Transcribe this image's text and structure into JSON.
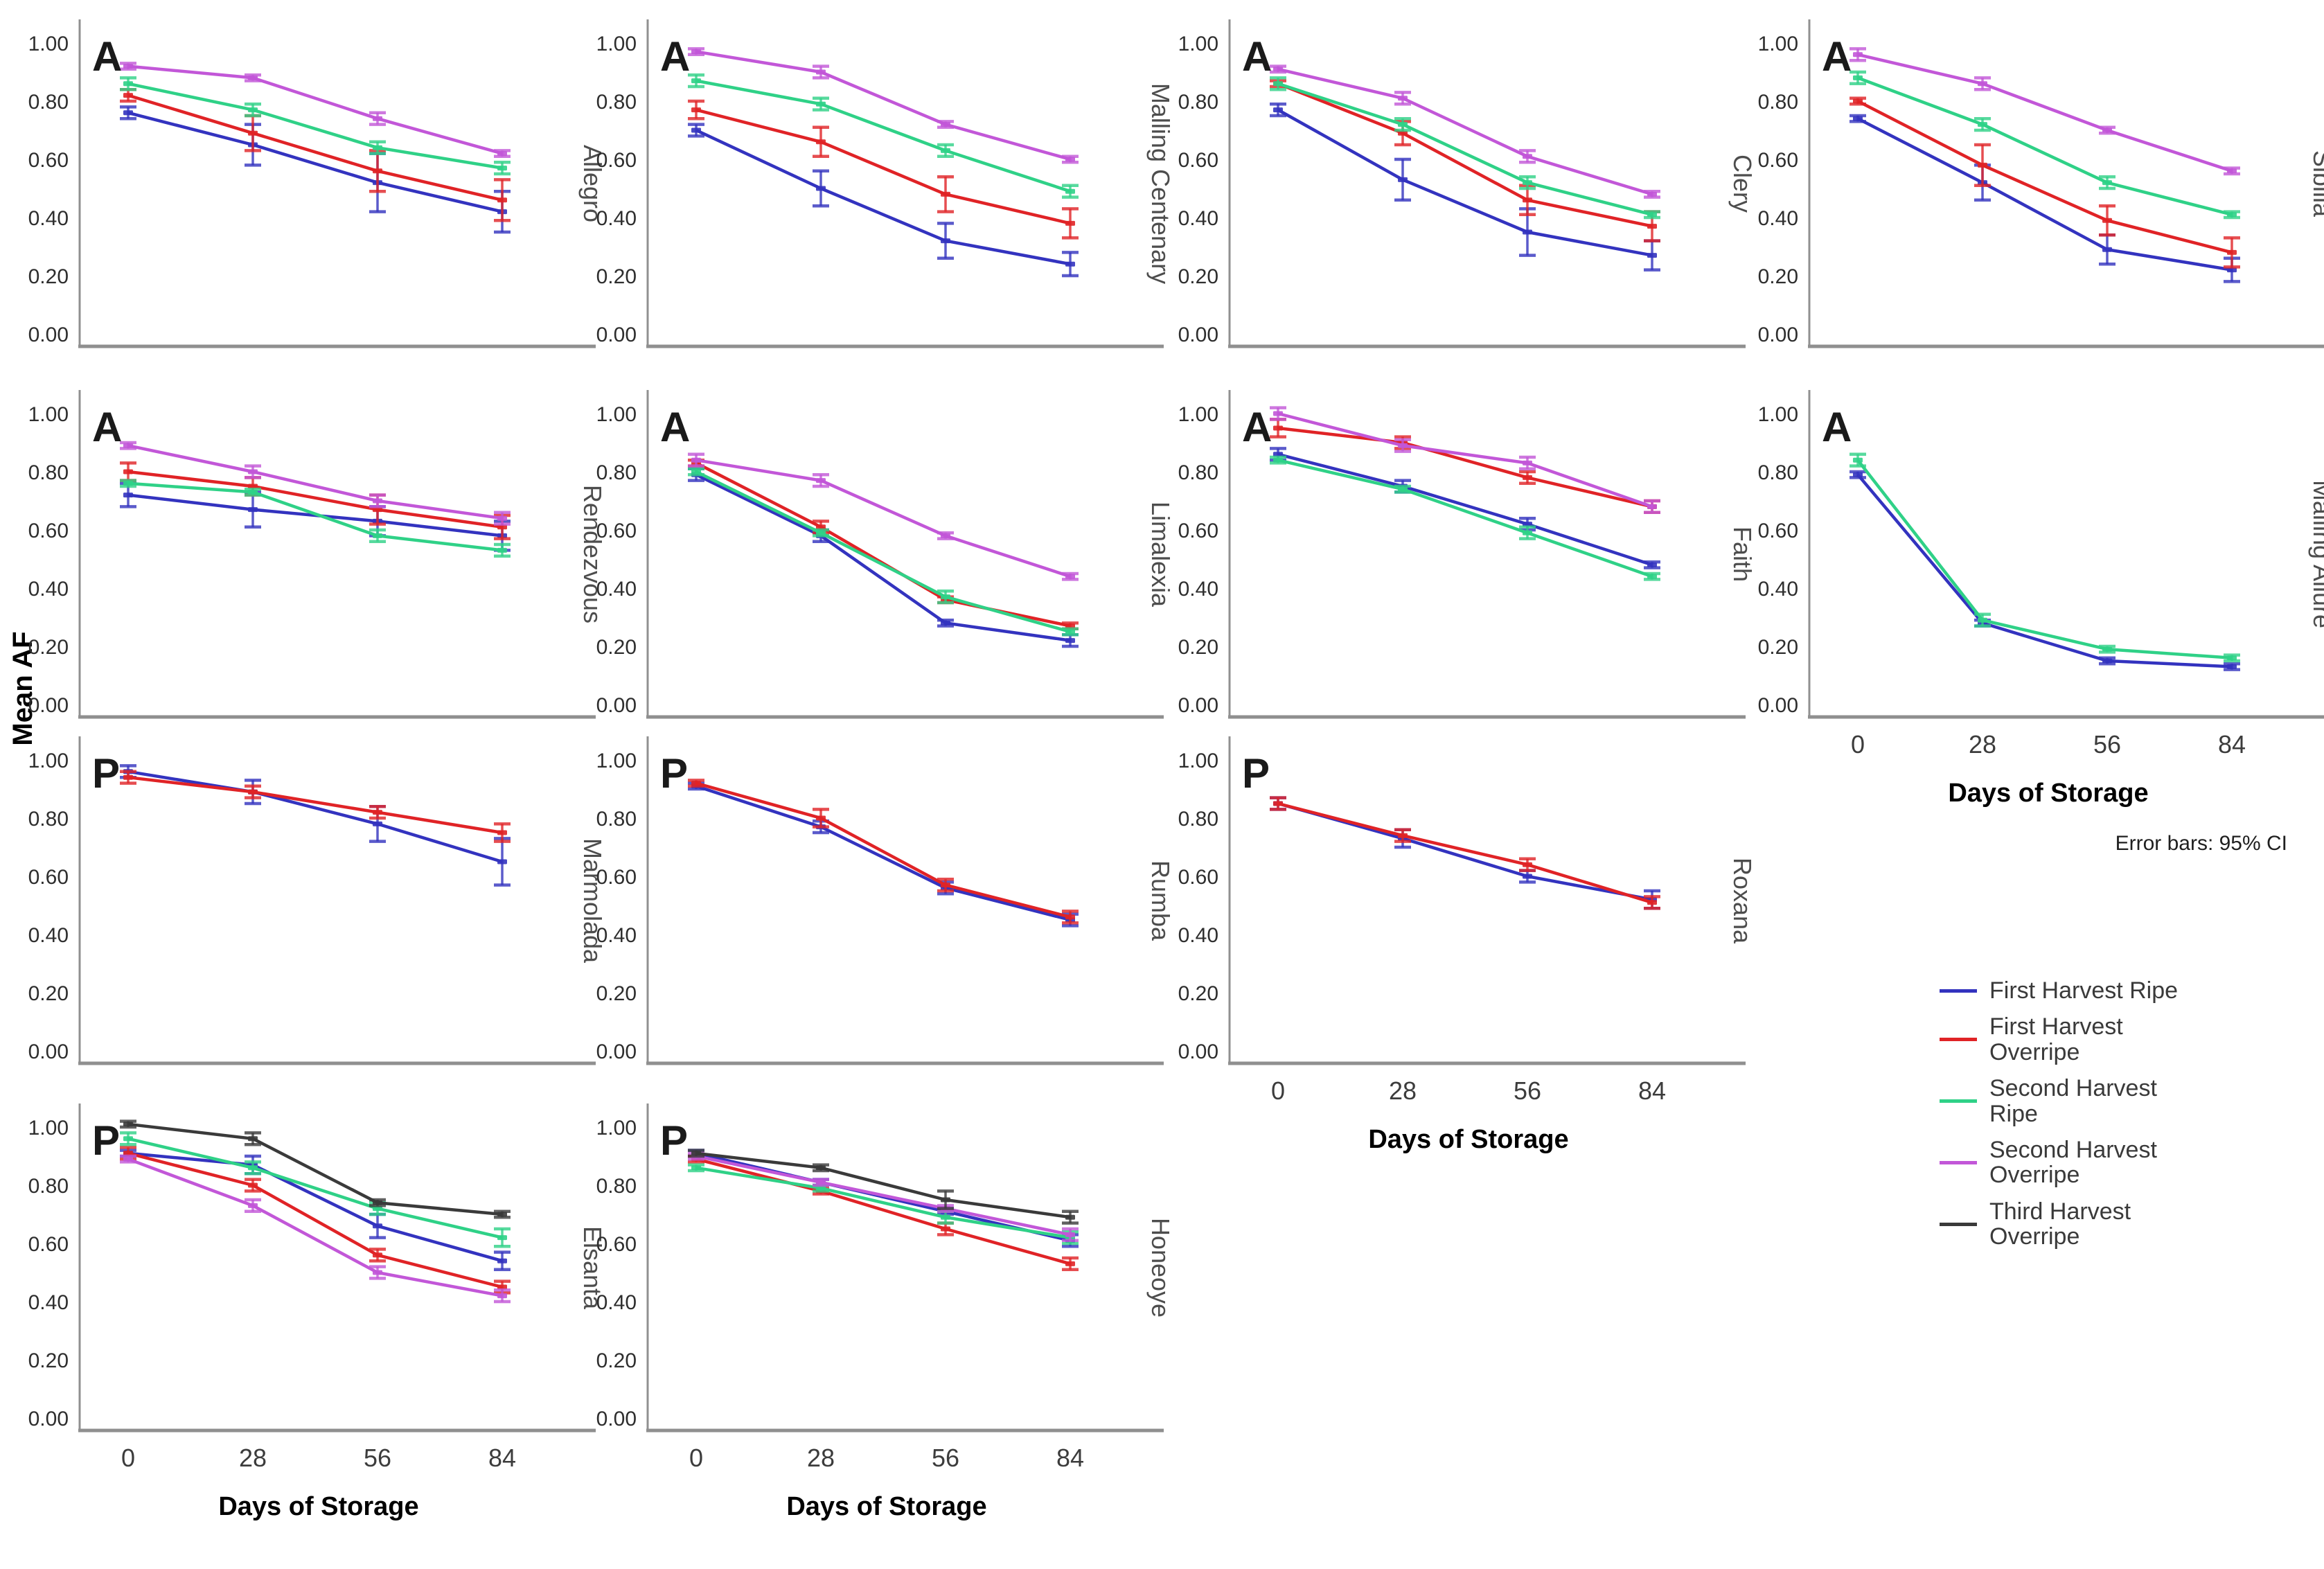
{
  "chart_data": {
    "type": "line",
    "x": [
      0,
      28,
      56,
      84
    ],
    "xlabel": "Days of Storage",
    "ylabel": "Mean AF",
    "ylim": [
      0.0,
      1.0
    ],
    "ytick_labels": [
      "1.00",
      "0.80",
      "0.60",
      "0.40",
      "0.20",
      "0.00"
    ],
    "grid": false,
    "error_note": "Error bars: 95% CI",
    "legend": {
      "position": "bottom-right",
      "items": [
        {
          "label": "First Harvest Ripe",
          "color": "#3333BF"
        },
        {
          "label": "First Harvest Overripe",
          "color": "#E02326"
        },
        {
          "label": "Second Harvest Ripe",
          "color": "#2FD187"
        },
        {
          "label": "Second Harvest Overripe",
          "color": "#C257D8"
        },
        {
          "label": "Third Harvest Overripe",
          "color": "#3A3A3A"
        }
      ]
    },
    "panels": [
      {
        "variety": "Allegro",
        "annotation": "A",
        "grid_row": 0,
        "grid_col": 0,
        "show_x_axis": false,
        "show_error_note": false,
        "series": [
          {
            "name": "First Harvest Ripe",
            "values": [
              0.76,
              0.65,
              0.52,
              0.42
            ],
            "ci": [
              0.02,
              0.07,
              0.1,
              0.07
            ]
          },
          {
            "name": "First Harvest Overripe",
            "values": [
              0.82,
              0.69,
              0.56,
              0.46
            ],
            "ci": [
              0.02,
              0.06,
              0.07,
              0.07
            ]
          },
          {
            "name": "Second Harvest Ripe",
            "values": [
              0.86,
              0.77,
              0.64,
              0.57
            ],
            "ci": [
              0.02,
              0.02,
              0.02,
              0.02
            ]
          },
          {
            "name": "Second Harvest Overripe",
            "values": [
              0.92,
              0.88,
              0.74,
              0.62
            ],
            "ci": [
              0.01,
              0.01,
              0.02,
              0.01
            ]
          }
        ]
      },
      {
        "variety": "Malling Centenary",
        "annotation": "A",
        "grid_row": 0,
        "grid_col": 1,
        "show_x_axis": false,
        "show_error_note": false,
        "series": [
          {
            "name": "First Harvest Ripe",
            "values": [
              0.7,
              0.5,
              0.32,
              0.24
            ],
            "ci": [
              0.02,
              0.06,
              0.06,
              0.04
            ]
          },
          {
            "name": "First Harvest Overripe",
            "values": [
              0.77,
              0.66,
              0.48,
              0.38
            ],
            "ci": [
              0.03,
              0.05,
              0.06,
              0.05
            ]
          },
          {
            "name": "Second Harvest Ripe",
            "values": [
              0.87,
              0.79,
              0.63,
              0.49
            ],
            "ci": [
              0.02,
              0.02,
              0.02,
              0.02
            ]
          },
          {
            "name": "Second Harvest Overripe",
            "values": [
              0.97,
              0.9,
              0.72,
              0.6
            ],
            "ci": [
              0.01,
              0.02,
              0.01,
              0.01
            ]
          }
        ]
      },
      {
        "variety": "Clery",
        "annotation": "A",
        "grid_row": 0,
        "grid_col": 2,
        "show_x_axis": false,
        "show_error_note": false,
        "series": [
          {
            "name": "First Harvest Ripe",
            "values": [
              0.77,
              0.53,
              0.35,
              0.27
            ],
            "ci": [
              0.02,
              0.07,
              0.08,
              0.05
            ]
          },
          {
            "name": "First Harvest Overripe",
            "values": [
              0.86,
              0.69,
              0.46,
              0.37
            ],
            "ci": [
              0.01,
              0.04,
              0.05,
              0.05
            ]
          },
          {
            "name": "Second Harvest Ripe",
            "values": [
              0.86,
              0.72,
              0.52,
              0.41
            ],
            "ci": [
              0.02,
              0.02,
              0.02,
              0.01
            ]
          },
          {
            "name": "Second Harvest Overripe",
            "values": [
              0.91,
              0.81,
              0.61,
              0.48
            ],
            "ci": [
              0.01,
              0.02,
              0.02,
              0.01
            ]
          }
        ]
      },
      {
        "variety": "Sibilla",
        "annotation": "A",
        "grid_row": 0,
        "grid_col": 3,
        "show_x_axis": false,
        "show_error_note": false,
        "series": [
          {
            "name": "First Harvest Ripe",
            "values": [
              0.74,
              0.52,
              0.29,
              0.22
            ],
            "ci": [
              0.01,
              0.06,
              0.05,
              0.04
            ]
          },
          {
            "name": "First Harvest Overripe",
            "values": [
              0.8,
              0.58,
              0.39,
              0.28
            ],
            "ci": [
              0.01,
              0.07,
              0.05,
              0.05
            ]
          },
          {
            "name": "Second Harvest Ripe",
            "values": [
              0.88,
              0.72,
              0.52,
              0.41
            ],
            "ci": [
              0.02,
              0.02,
              0.02,
              0.01
            ]
          },
          {
            "name": "Second Harvest Overripe",
            "values": [
              0.96,
              0.86,
              0.7,
              0.56
            ],
            "ci": [
              0.02,
              0.02,
              0.01,
              0.01
            ]
          }
        ]
      },
      {
        "variety": "Rendezvous",
        "annotation": "A",
        "grid_row": 1,
        "grid_col": 0,
        "show_x_axis": false,
        "show_error_note": false,
        "series": [
          {
            "name": "First Harvest Ripe",
            "values": [
              0.72,
              0.67,
              0.63,
              0.58
            ],
            "ci": [
              0.04,
              0.06,
              0.05,
              0.05
            ]
          },
          {
            "name": "First Harvest Overripe",
            "values": [
              0.8,
              0.75,
              0.67,
              0.61
            ],
            "ci": [
              0.03,
              0.03,
              0.05,
              0.04
            ]
          },
          {
            "name": "Second Harvest Ripe",
            "values": [
              0.76,
              0.73,
              0.58,
              0.53
            ],
            "ci": [
              0.01,
              0.01,
              0.02,
              0.02
            ]
          },
          {
            "name": "Second Harvest Overripe",
            "values": [
              0.89,
              0.8,
              0.7,
              0.64
            ],
            "ci": [
              0.01,
              0.02,
              0.02,
              0.02
            ]
          }
        ]
      },
      {
        "variety": "Limalexia",
        "annotation": "A",
        "grid_row": 1,
        "grid_col": 1,
        "show_x_axis": false,
        "show_error_note": false,
        "series": [
          {
            "name": "First Harvest Ripe",
            "values": [
              0.79,
              0.58,
              0.28,
              0.22
            ],
            "ci": [
              0.02,
              0.02,
              0.01,
              0.02
            ]
          },
          {
            "name": "First Harvest Overripe",
            "values": [
              0.83,
              0.61,
              0.36,
              0.27
            ],
            "ci": [
              0.01,
              0.02,
              0.01,
              0.01
            ]
          },
          {
            "name": "Second Harvest Ripe",
            "values": [
              0.8,
              0.59,
              0.37,
              0.25
            ],
            "ci": [
              0.01,
              0.01,
              0.02,
              0.01
            ]
          },
          {
            "name": "Second Harvest Overripe",
            "values": [
              0.84,
              0.77,
              0.58,
              0.44
            ],
            "ci": [
              0.02,
              0.02,
              0.01,
              0.01
            ]
          }
        ]
      },
      {
        "variety": "Faith",
        "annotation": "A",
        "grid_row": 1,
        "grid_col": 2,
        "show_x_axis": false,
        "show_error_note": false,
        "series": [
          {
            "name": "First Harvest Ripe",
            "values": [
              0.86,
              0.75,
              0.62,
              0.48
            ],
            "ci": [
              0.02,
              0.02,
              0.02,
              0.01
            ]
          },
          {
            "name": "First Harvest Overripe",
            "values": [
              0.95,
              0.9,
              0.78,
              0.68
            ],
            "ci": [
              0.03,
              0.02,
              0.02,
              0.02
            ]
          },
          {
            "name": "Second Harvest Ripe",
            "values": [
              0.84,
              0.74,
              0.59,
              0.44
            ],
            "ci": [
              0.01,
              0.01,
              0.02,
              0.01
            ]
          },
          {
            "name": "Second Harvest Overripe",
            "values": [
              1.0,
              0.89,
              0.83,
              0.68
            ],
            "ci": [
              0.02,
              0.02,
              0.02,
              0.02
            ]
          }
        ]
      },
      {
        "variety": "Malling Allure",
        "annotation": "A",
        "grid_row": 1,
        "grid_col": 3,
        "show_x_axis": true,
        "show_error_note": true,
        "series": [
          {
            "name": "First Harvest Ripe",
            "values": [
              0.79,
              0.28,
              0.15,
              0.13
            ],
            "ci": [
              0.01,
              0.01,
              0.01,
              0.01
            ]
          },
          {
            "name": "Second Harvest Ripe",
            "values": [
              0.84,
              0.29,
              0.19,
              0.16
            ],
            "ci": [
              0.02,
              0.02,
              0.01,
              0.01
            ]
          }
        ]
      },
      {
        "variety": "Marmolada",
        "annotation": "P",
        "grid_row": 2,
        "grid_col": 0,
        "show_x_axis": false,
        "show_error_note": false,
        "series": [
          {
            "name": "First Harvest Ripe",
            "values": [
              0.96,
              0.89,
              0.78,
              0.65
            ],
            "ci": [
              0.02,
              0.04,
              0.06,
              0.08
            ]
          },
          {
            "name": "First Harvest Overripe",
            "values": [
              0.94,
              0.89,
              0.82,
              0.75
            ],
            "ci": [
              0.02,
              0.02,
              0.02,
              0.03
            ]
          }
        ]
      },
      {
        "variety": "Rumba",
        "annotation": "P",
        "grid_row": 2,
        "grid_col": 1,
        "show_x_axis": false,
        "show_error_note": false,
        "series": [
          {
            "name": "First Harvest Ripe",
            "values": [
              0.91,
              0.77,
              0.56,
              0.45
            ],
            "ci": [
              0.01,
              0.02,
              0.02,
              0.02
            ]
          },
          {
            "name": "First Harvest Overripe",
            "values": [
              0.92,
              0.8,
              0.57,
              0.46
            ],
            "ci": [
              0.01,
              0.03,
              0.02,
              0.02
            ]
          }
        ]
      },
      {
        "variety": "Roxana",
        "annotation": "P",
        "grid_row": 2,
        "grid_col": 2,
        "show_x_axis": true,
        "show_error_note": false,
        "series": [
          {
            "name": "First Harvest Ripe",
            "values": [
              0.85,
              0.73,
              0.6,
              0.52
            ],
            "ci": [
              0.02,
              0.03,
              0.02,
              0.03
            ]
          },
          {
            "name": "First Harvest Overripe",
            "values": [
              0.85,
              0.74,
              0.64,
              0.51
            ],
            "ci": [
              0.02,
              0.02,
              0.02,
              0.02
            ]
          }
        ]
      },
      {
        "variety": "Elsanta",
        "annotation": "P",
        "grid_row": 3,
        "grid_col": 0,
        "show_x_axis": true,
        "show_error_note": false,
        "series": [
          {
            "name": "First Harvest Ripe",
            "values": [
              0.91,
              0.87,
              0.66,
              0.54
            ],
            "ci": [
              0.01,
              0.03,
              0.04,
              0.03
            ]
          },
          {
            "name": "First Harvest Overripe",
            "values": [
              0.91,
              0.8,
              0.56,
              0.45
            ],
            "ci": [
              0.02,
              0.02,
              0.02,
              0.02
            ]
          },
          {
            "name": "Second Harvest Ripe",
            "values": [
              0.96,
              0.86,
              0.72,
              0.62
            ],
            "ci": [
              0.02,
              0.02,
              0.02,
              0.03
            ]
          },
          {
            "name": "Second Harvest Overripe",
            "values": [
              0.89,
              0.73,
              0.5,
              0.42
            ],
            "ci": [
              0.01,
              0.02,
              0.02,
              0.02
            ]
          },
          {
            "name": "Third Harvest Overripe",
            "values": [
              1.01,
              0.96,
              0.74,
              0.7
            ],
            "ci": [
              0.01,
              0.02,
              0.01,
              0.01
            ]
          }
        ]
      },
      {
        "variety": "Honeoye",
        "annotation": "P",
        "grid_row": 3,
        "grid_col": 1,
        "show_x_axis": true,
        "show_error_note": false,
        "series": [
          {
            "name": "First Harvest Ripe",
            "values": [
              0.91,
              0.81,
              0.71,
              0.61
            ],
            "ci": [
              0.01,
              0.01,
              0.01,
              0.02
            ]
          },
          {
            "name": "First Harvest Overripe",
            "values": [
              0.89,
              0.78,
              0.65,
              0.53
            ],
            "ci": [
              0.01,
              0.01,
              0.02,
              0.02
            ]
          },
          {
            "name": "Second Harvest Ripe",
            "values": [
              0.86,
              0.79,
              0.69,
              0.62
            ],
            "ci": [
              0.01,
              0.01,
              0.02,
              0.02
            ]
          },
          {
            "name": "Second Harvest Overripe",
            "values": [
              0.9,
              0.81,
              0.72,
              0.63
            ],
            "ci": [
              0.01,
              0.01,
              0.01,
              0.02
            ]
          },
          {
            "name": "Third Harvest Overripe",
            "values": [
              0.91,
              0.86,
              0.75,
              0.69
            ],
            "ci": [
              0.01,
              0.01,
              0.03,
              0.02
            ]
          }
        ]
      }
    ]
  }
}
